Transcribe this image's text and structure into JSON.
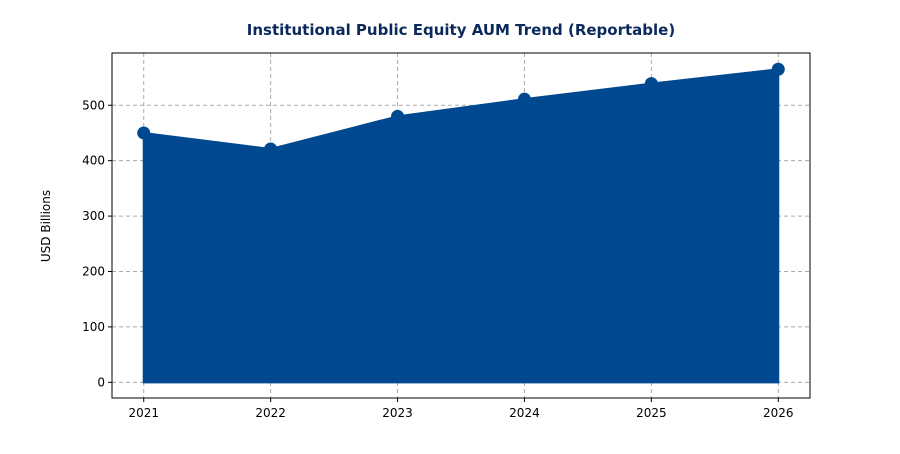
{
  "chart_data": {
    "type": "area",
    "title": "Institutional Public Equity AUM Trend (Reportable)",
    "y_label": "USD Billions",
    "x": [
      2021,
      2022,
      2023,
      2024,
      2025,
      2026
    ],
    "series": [
      {
        "values": [
          450,
          421,
          480,
          511,
          539,
          565
        ],
        "color": "#004990"
      }
    ],
    "xlim": [
      2020.75,
      2026.25
    ],
    "xticks": [
      2021,
      2022,
      2023,
      2024,
      2025,
      2026
    ],
    "ylim": [
      -28.3,
      594.3
    ],
    "yticks": [
      0,
      100,
      200,
      300,
      400,
      500
    ],
    "grid": true
  }
}
